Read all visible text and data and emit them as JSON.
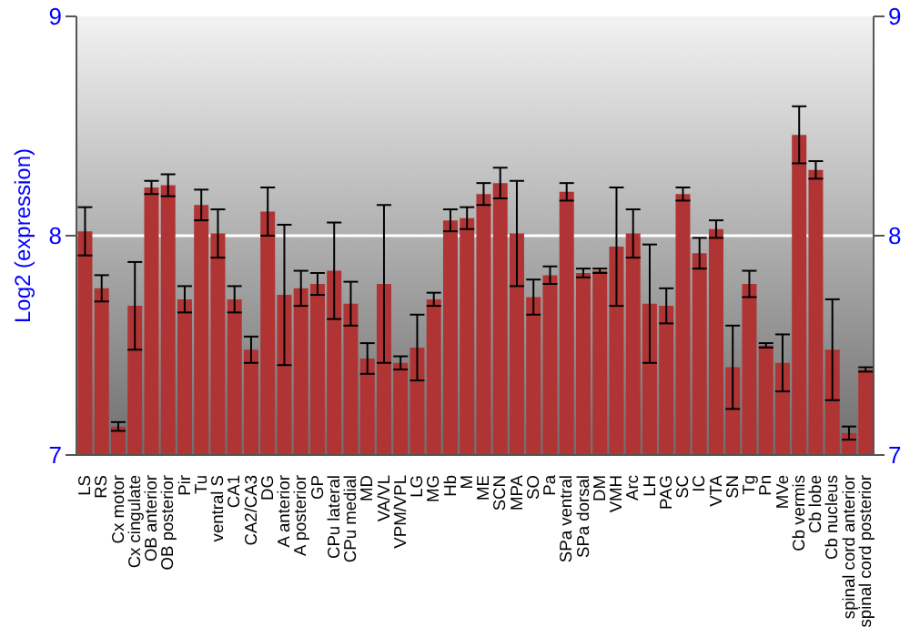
{
  "chart_data": {
    "type": "bar",
    "ylabel": "Log2 (expression)",
    "categories": [
      "LS",
      "RS",
      "Cx motor",
      "Cx cingulate",
      "OB anterior",
      "OB posterior",
      "Pir",
      "Tu",
      "ventral S",
      "CA1",
      "CA2/CA3",
      "DG",
      "A anterior",
      "A posterior",
      "GP",
      "CPu lateral",
      "CPu medial",
      "MD",
      "VA/VL",
      "VPM/VPL",
      "LG",
      "MG",
      "Hb",
      "M",
      "ME",
      "SCN",
      "MPA",
      "SO",
      "Pa",
      "SPa ventral",
      "SPa dorsal",
      "DM",
      "VMH",
      "Arc",
      "LH",
      "PAG",
      "SC",
      "IC",
      "VTA",
      "SN",
      "Tg",
      "Pn",
      "MVe",
      "Cb vermis",
      "Cb lobe",
      "Cb nucleus",
      "spinal cord anterior",
      "spinal cord posterior"
    ],
    "values": [
      8.02,
      7.76,
      7.13,
      7.68,
      8.22,
      8.23,
      7.71,
      8.14,
      8.01,
      7.71,
      7.48,
      8.11,
      7.73,
      7.76,
      7.78,
      7.84,
      7.69,
      7.44,
      7.78,
      7.42,
      7.49,
      7.71,
      8.07,
      8.08,
      8.19,
      8.24,
      8.01,
      7.72,
      7.82,
      8.2,
      7.83,
      7.84,
      7.95,
      8.01,
      7.69,
      7.68,
      8.19,
      7.92,
      8.03,
      7.4,
      7.78,
      7.5,
      7.42,
      8.46,
      8.3,
      7.48,
      7.1,
      7.39
    ],
    "errors": [
      0.11,
      0.06,
      0.02,
      0.2,
      0.03,
      0.05,
      0.06,
      0.07,
      0.11,
      0.06,
      0.06,
      0.11,
      0.32,
      0.08,
      0.05,
      0.22,
      0.1,
      0.07,
      0.36,
      0.03,
      0.15,
      0.03,
      0.05,
      0.05,
      0.05,
      0.07,
      0.24,
      0.08,
      0.04,
      0.04,
      0.02,
      0.01,
      0.27,
      0.11,
      0.27,
      0.08,
      0.03,
      0.07,
      0.04,
      0.19,
      0.06,
      0.01,
      0.13,
      0.13,
      0.04,
      0.23,
      0.03,
      0.01
    ],
    "color": "#b03434",
    "ylim": [
      7,
      9
    ],
    "yticks": [
      7,
      8,
      9
    ],
    "y2lim": [
      7,
      9
    ],
    "y2ticks": [
      7,
      8,
      9
    ],
    "grid": "y"
  }
}
